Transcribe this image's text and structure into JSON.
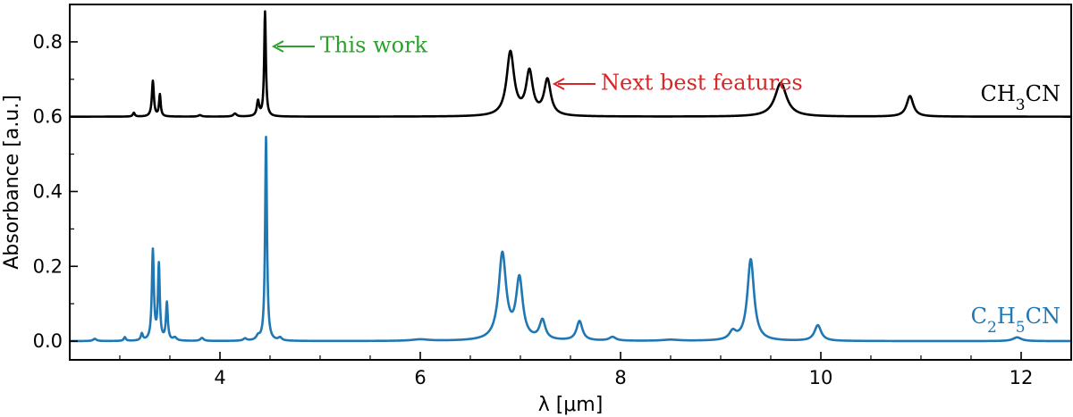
{
  "chart_data": {
    "type": "line",
    "xlabel": "λ [μm]",
    "ylabel": "Absorbance [a.u.]",
    "xlim": [
      2.5,
      12.5
    ],
    "ylim": [
      -0.05,
      0.9
    ],
    "x_ticks": [
      4,
      6,
      8,
      10,
      12
    ],
    "x_tick_labels": [
      "4",
      "6",
      "8",
      "10",
      "12"
    ],
    "y_ticks": [
      0.0,
      0.2,
      0.4,
      0.6,
      0.8
    ],
    "y_tick_labels": [
      "0.0",
      "0.2",
      "0.4",
      "0.6",
      "0.8"
    ],
    "grid": false,
    "series": [
      {
        "name": "CH₃CN",
        "label_main": "CH",
        "label_sub": "3",
        "label_tail": "CN",
        "color": "#000000",
        "baseline": 0.6,
        "peaks": [
          {
            "x": 3.14,
            "height": 0.01,
            "width": 0.012
          },
          {
            "x": 3.33,
            "height": 0.095,
            "width": 0.012
          },
          {
            "x": 3.4,
            "height": 0.058,
            "width": 0.01
          },
          {
            "x": 3.8,
            "height": 0.004,
            "width": 0.02
          },
          {
            "x": 4.15,
            "height": 0.008,
            "width": 0.02
          },
          {
            "x": 4.38,
            "height": 0.04,
            "width": 0.014
          },
          {
            "x": 4.45,
            "height": 0.28,
            "width": 0.01
          },
          {
            "x": 6.9,
            "height": 0.17,
            "width": 0.045
          },
          {
            "x": 7.09,
            "height": 0.115,
            "width": 0.04
          },
          {
            "x": 7.27,
            "height": 0.095,
            "width": 0.04
          },
          {
            "x": 9.6,
            "height": 0.09,
            "width": 0.07
          },
          {
            "x": 10.89,
            "height": 0.055,
            "width": 0.04
          }
        ]
      },
      {
        "name": "C₂H₅CN",
        "label_main": "C",
        "label_sub": "2",
        "label_mid": "H",
        "label_sub2": "5",
        "label_tail": "CN",
        "color": "#1f77b4",
        "baseline": 0.0,
        "peaks": [
          {
            "x": 2.75,
            "height": 0.006,
            "width": 0.02
          },
          {
            "x": 3.05,
            "height": 0.01,
            "width": 0.012
          },
          {
            "x": 3.22,
            "height": 0.018,
            "width": 0.012
          },
          {
            "x": 3.33,
            "height": 0.24,
            "width": 0.012
          },
          {
            "x": 3.39,
            "height": 0.2,
            "width": 0.011
          },
          {
            "x": 3.47,
            "height": 0.1,
            "width": 0.011
          },
          {
            "x": 3.55,
            "height": 0.008,
            "width": 0.02
          },
          {
            "x": 3.82,
            "height": 0.008,
            "width": 0.02
          },
          {
            "x": 4.25,
            "height": 0.006,
            "width": 0.02
          },
          {
            "x": 4.38,
            "height": 0.01,
            "width": 0.02
          },
          {
            "x": 4.46,
            "height": 0.545,
            "width": 0.011
          },
          {
            "x": 4.6,
            "height": 0.008,
            "width": 0.02
          },
          {
            "x": 6.0,
            "height": 0.004,
            "width": 0.1
          },
          {
            "x": 6.82,
            "height": 0.23,
            "width": 0.045
          },
          {
            "x": 6.99,
            "height": 0.16,
            "width": 0.04
          },
          {
            "x": 7.22,
            "height": 0.052,
            "width": 0.035
          },
          {
            "x": 7.59,
            "height": 0.052,
            "width": 0.035
          },
          {
            "x": 7.92,
            "height": 0.01,
            "width": 0.04
          },
          {
            "x": 8.5,
            "height": 0.003,
            "width": 0.1
          },
          {
            "x": 9.12,
            "height": 0.022,
            "width": 0.04
          },
          {
            "x": 9.3,
            "height": 0.218,
            "width": 0.04
          },
          {
            "x": 9.97,
            "height": 0.042,
            "width": 0.04
          },
          {
            "x": 11.96,
            "height": 0.01,
            "width": 0.05
          }
        ]
      }
    ],
    "annotations": [
      {
        "text": "This work",
        "color": "#2ca02c",
        "x": 4.45,
        "y": 0.84
      },
      {
        "text": "Next best features",
        "color": "#d62728",
        "x": 7.3,
        "y": 0.7
      }
    ]
  }
}
